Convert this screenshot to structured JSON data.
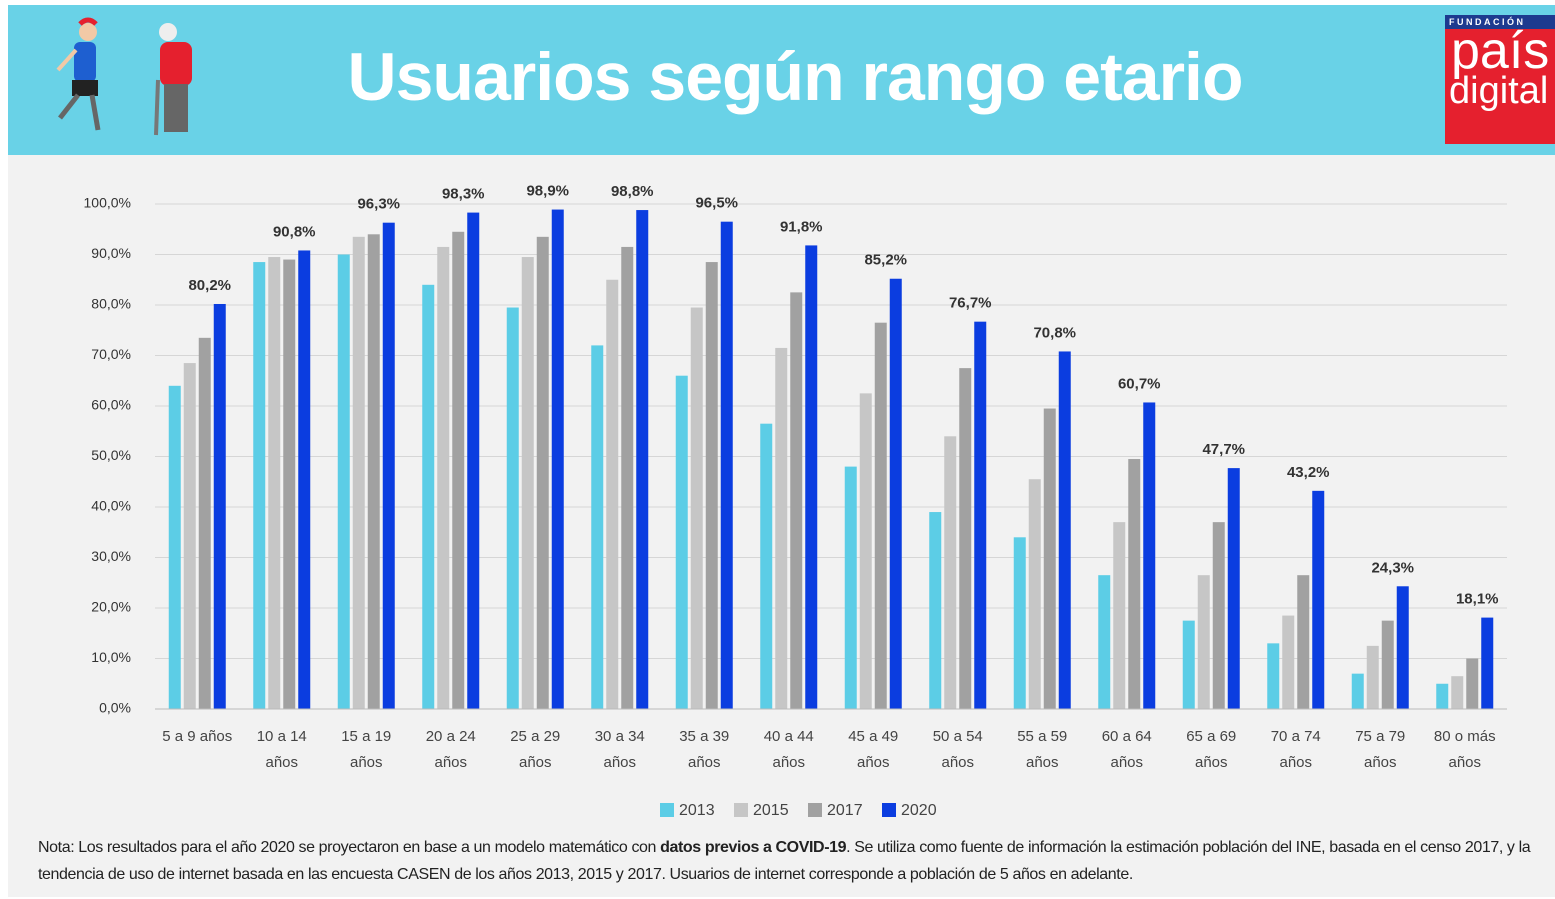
{
  "header": {
    "title": "Usuarios según rango etario",
    "logo": {
      "top": "FUNDACIÓN",
      "line1": "país",
      "line2": "digital"
    }
  },
  "chart_data": {
    "type": "bar",
    "categories": [
      "5 a 9 años",
      "10 a 14 años",
      "15 a 19 años",
      "20 a 24 años",
      "25 a 29 años",
      "30 a 34 años",
      "35 a 39 años",
      "40 a 44 años",
      "45 a 49 años",
      "50 a 54 años",
      "55 a 59 años",
      "60 a 64 años",
      "65 a 69 años",
      "70 a 74 años",
      "75 a 79 años",
      "80 o más años"
    ],
    "series": [
      {
        "name": "2013",
        "color": "#5ccde6",
        "values": [
          64,
          88.5,
          90,
          84,
          79.5,
          72,
          66,
          56.5,
          48,
          39,
          34,
          26.5,
          17.5,
          13,
          7,
          5
        ]
      },
      {
        "name": "2015",
        "color": "#c6c6c6",
        "values": [
          68.5,
          89.5,
          93.5,
          91.5,
          89.5,
          85,
          79.5,
          71.5,
          62.5,
          54,
          45.5,
          37,
          26.5,
          18.5,
          12.5,
          6.5
        ]
      },
      {
        "name": "2017",
        "color": "#a1a1a1",
        "values": [
          73.5,
          89,
          94,
          94.5,
          93.5,
          91.5,
          88.5,
          82.5,
          76.5,
          67.5,
          59.5,
          49.5,
          37,
          26.5,
          17.5,
          10
        ]
      },
      {
        "name": "2020",
        "color": "#0b3de0",
        "values": [
          80.2,
          90.8,
          96.3,
          98.3,
          98.9,
          98.8,
          96.5,
          91.8,
          85.2,
          76.7,
          70.8,
          60.7,
          47.7,
          43.2,
          24.3,
          18.1
        ],
        "value_labels": [
          "80,2%",
          "90,8%",
          "96,3%",
          "98,3%",
          "98,9%",
          "98,8%",
          "96,5%",
          "91,8%",
          "85,2%",
          "76,7%",
          "70,8%",
          "60,7%",
          "47,7%",
          "43,2%",
          "24,3%",
          "18,1%"
        ]
      }
    ],
    "ylim": [
      0,
      100
    ],
    "yticks": [
      {
        "value": 0,
        "label": "0,0%"
      },
      {
        "value": 10,
        "label": "10,0%"
      },
      {
        "value": 20,
        "label": "20,0%"
      },
      {
        "value": 30,
        "label": "30,0%"
      },
      {
        "value": 40,
        "label": "40,0%"
      },
      {
        "value": 50,
        "label": "50,0%"
      },
      {
        "value": 60,
        "label": "60,0%"
      },
      {
        "value": 70,
        "label": "70,0%"
      },
      {
        "value": 80,
        "label": "80,0%"
      },
      {
        "value": 90,
        "label": "90,0%"
      },
      {
        "value": 100,
        "label": "100,0%"
      }
    ],
    "grid": true,
    "legend": "bottom"
  },
  "note": [
    "Nota: Los resultados para el año 2020 se proyectaron en base a un modelo matemático con ",
    "datos previos a COVID-19",
    ". Se utiliza como fuente de información la estimación población del INE, basada en el censo 2017, y la tendencia de uso de internet basada en las encuesta CASEN de los años 2013, 2015 y 2017. Usuarios de internet corresponde a población de 5 años en adelante."
  ]
}
